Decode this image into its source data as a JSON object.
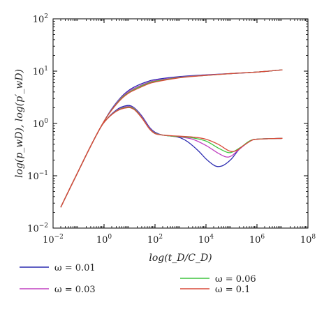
{
  "chart_data": {
    "type": "line",
    "xscale": "log",
    "yscale": "log",
    "xlim": [
      0.01,
      100000000
    ],
    "ylim": [
      0.01,
      100
    ],
    "x_ticks": [
      {
        "base": "10",
        "exp": "−2",
        "value": 0.01
      },
      {
        "base": "10",
        "exp": "0",
        "value": 1
      },
      {
        "base": "10",
        "exp": "2",
        "value": 100
      },
      {
        "base": "10",
        "exp": "4",
        "value": 10000
      },
      {
        "base": "10",
        "exp": "6",
        "value": 1000000
      },
      {
        "base": "10",
        "exp": "8",
        "value": 100000000
      }
    ],
    "y_ticks": [
      {
        "base": "10",
        "exp": "−2",
        "value": 0.01
      },
      {
        "base": "10",
        "exp": "−1",
        "value": 0.1
      },
      {
        "base": "10",
        "exp": "0",
        "value": 1
      },
      {
        "base": "10",
        "exp": "1",
        "value": 10
      },
      {
        "base": "10",
        "exp": "2",
        "value": 100
      }
    ],
    "xlabel": "log(t_D/C_D)",
    "ylabel": "log(p_wD), log(p′_wD)",
    "legend_position": "bottom",
    "series": [
      {
        "name": "ω = 0.01",
        "color": "#2b2bb0",
        "pressure": [
          [
            0.02,
            0.025
          ],
          [
            0.05,
            0.063
          ],
          [
            0.1,
            0.125
          ],
          [
            0.2,
            0.25
          ],
          [
            0.5,
            0.6
          ],
          [
            1,
            1.1
          ],
          [
            2,
            1.9
          ],
          [
            5,
            3.3
          ],
          [
            10,
            4.4
          ],
          [
            20,
            5.3
          ],
          [
            50,
            6.3
          ],
          [
            100,
            6.9
          ],
          [
            1000,
            7.9
          ],
          [
            10000,
            8.5
          ],
          [
            100000,
            9.0
          ],
          [
            1000000,
            9.6
          ],
          [
            10000000,
            10.6
          ]
        ],
        "derivative": [
          [
            0.02,
            0.025
          ],
          [
            0.05,
            0.063
          ],
          [
            0.1,
            0.125
          ],
          [
            0.2,
            0.25
          ],
          [
            0.5,
            0.6
          ],
          [
            1,
            1.05
          ],
          [
            3,
            1.8
          ],
          [
            8,
            2.2
          ],
          [
            15,
            2.0
          ],
          [
            30,
            1.4
          ],
          [
            60,
            0.85
          ],
          [
            100,
            0.68
          ],
          [
            200,
            0.6
          ],
          [
            500,
            0.57
          ],
          [
            1000,
            0.53
          ],
          [
            2000,
            0.44
          ],
          [
            5000,
            0.3
          ],
          [
            10000,
            0.21
          ],
          [
            20000,
            0.16
          ],
          [
            30000,
            0.15
          ],
          [
            50000,
            0.16
          ],
          [
            100000,
            0.21
          ],
          [
            200000,
            0.32
          ],
          [
            500000,
            0.45
          ],
          [
            1000000,
            0.5
          ],
          [
            10000000,
            0.52
          ]
        ]
      },
      {
        "name": "ω = 0.03",
        "color": "#c040c0",
        "pressure": [
          [
            0.02,
            0.025
          ],
          [
            0.05,
            0.063
          ],
          [
            0.1,
            0.125
          ],
          [
            0.2,
            0.25
          ],
          [
            0.5,
            0.6
          ],
          [
            1,
            1.1
          ],
          [
            2,
            1.85
          ],
          [
            5,
            3.2
          ],
          [
            10,
            4.2
          ],
          [
            20,
            5.0
          ],
          [
            50,
            6.0
          ],
          [
            100,
            6.6
          ],
          [
            1000,
            7.7
          ],
          [
            10000,
            8.4
          ],
          [
            100000,
            9.0
          ],
          [
            1000000,
            9.6
          ],
          [
            10000000,
            10.6
          ]
        ],
        "derivative": [
          [
            0.02,
            0.025
          ],
          [
            0.05,
            0.063
          ],
          [
            0.1,
            0.125
          ],
          [
            0.2,
            0.25
          ],
          [
            0.5,
            0.6
          ],
          [
            1,
            1.05
          ],
          [
            3,
            1.75
          ],
          [
            8,
            2.1
          ],
          [
            15,
            1.95
          ],
          [
            30,
            1.35
          ],
          [
            60,
            0.82
          ],
          [
            100,
            0.66
          ],
          [
            200,
            0.6
          ],
          [
            500,
            0.57
          ],
          [
            1000,
            0.55
          ],
          [
            3000,
            0.5
          ],
          [
            10000,
            0.38
          ],
          [
            30000,
            0.27
          ],
          [
            60000,
            0.23
          ],
          [
            100000,
            0.24
          ],
          [
            200000,
            0.32
          ],
          [
            500000,
            0.45
          ],
          [
            1000000,
            0.5
          ],
          [
            10000000,
            0.52
          ]
        ]
      },
      {
        "name": "ω = 0.06",
        "color": "#3ec43e",
        "pressure": [
          [
            0.02,
            0.025
          ],
          [
            0.05,
            0.063
          ],
          [
            0.1,
            0.125
          ],
          [
            0.2,
            0.25
          ],
          [
            0.5,
            0.6
          ],
          [
            1,
            1.1
          ],
          [
            2,
            1.82
          ],
          [
            5,
            3.1
          ],
          [
            10,
            4.0
          ],
          [
            20,
            4.8
          ],
          [
            50,
            5.8
          ],
          [
            100,
            6.4
          ],
          [
            1000,
            7.6
          ],
          [
            10000,
            8.3
          ],
          [
            100000,
            9.0
          ],
          [
            1000000,
            9.6
          ],
          [
            10000000,
            10.6
          ]
        ],
        "derivative": [
          [
            0.02,
            0.025
          ],
          [
            0.05,
            0.063
          ],
          [
            0.1,
            0.125
          ],
          [
            0.2,
            0.25
          ],
          [
            0.5,
            0.6
          ],
          [
            1,
            1.05
          ],
          [
            3,
            1.72
          ],
          [
            8,
            2.05
          ],
          [
            15,
            1.9
          ],
          [
            30,
            1.3
          ],
          [
            60,
            0.8
          ],
          [
            100,
            0.65
          ],
          [
            200,
            0.6
          ],
          [
            500,
            0.57
          ],
          [
            1000,
            0.56
          ],
          [
            3000,
            0.53
          ],
          [
            10000,
            0.46
          ],
          [
            30000,
            0.34
          ],
          [
            70000,
            0.28
          ],
          [
            120000,
            0.29
          ],
          [
            250000,
            0.36
          ],
          [
            500000,
            0.46
          ],
          [
            1000000,
            0.5
          ],
          [
            10000000,
            0.52
          ]
        ]
      },
      {
        "name": "ω = 0.1",
        "color": "#d94a3a",
        "pressure": [
          [
            0.02,
            0.025
          ],
          [
            0.05,
            0.063
          ],
          [
            0.1,
            0.125
          ],
          [
            0.2,
            0.25
          ],
          [
            0.5,
            0.6
          ],
          [
            1,
            1.1
          ],
          [
            2,
            1.8
          ],
          [
            5,
            3.0
          ],
          [
            10,
            3.9
          ],
          [
            20,
            4.6
          ],
          [
            50,
            5.6
          ],
          [
            100,
            6.2
          ],
          [
            1000,
            7.5
          ],
          [
            10000,
            8.3
          ],
          [
            100000,
            9.0
          ],
          [
            1000000,
            9.6
          ],
          [
            10000000,
            10.6
          ]
        ],
        "derivative": [
          [
            0.02,
            0.025
          ],
          [
            0.05,
            0.063
          ],
          [
            0.1,
            0.125
          ],
          [
            0.2,
            0.25
          ],
          [
            0.5,
            0.6
          ],
          [
            1,
            1.05
          ],
          [
            3,
            1.7
          ],
          [
            8,
            2.0
          ],
          [
            15,
            1.85
          ],
          [
            30,
            1.28
          ],
          [
            60,
            0.79
          ],
          [
            100,
            0.64
          ],
          [
            200,
            0.6
          ],
          [
            500,
            0.58
          ],
          [
            1000,
            0.57
          ],
          [
            3000,
            0.55
          ],
          [
            10000,
            0.5
          ],
          [
            30000,
            0.4
          ],
          [
            80000,
            0.3
          ],
          [
            150000,
            0.3
          ],
          [
            300000,
            0.38
          ],
          [
            600000,
            0.47
          ],
          [
            1000000,
            0.5
          ],
          [
            10000000,
            0.52
          ]
        ]
      }
    ]
  }
}
